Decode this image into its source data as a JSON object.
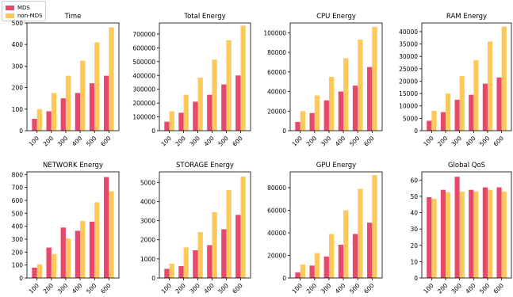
{
  "legend": {
    "series": [
      {
        "name": "MDS",
        "color": "#e8486b"
      },
      {
        "name": "non-MDS",
        "color": "#fdc95a"
      }
    ]
  },
  "chart_data": [
    {
      "type": "bar",
      "title": "Time",
      "categories": [
        "100",
        "200",
        "300",
        "400",
        "500",
        "600"
      ],
      "series": [
        {
          "name": "MDS",
          "values": [
            55,
            90,
            150,
            175,
            220,
            255
          ]
        },
        {
          "name": "non-MDS",
          "values": [
            100,
            175,
            255,
            325,
            410,
            480
          ]
        }
      ],
      "ylim": [
        0,
        500
      ],
      "yticks": [
        0,
        100,
        200,
        300,
        400,
        500
      ],
      "ytick_labels": [
        "0",
        "100",
        "200",
        "300",
        "400",
        "500"
      ]
    },
    {
      "type": "bar",
      "title": "Total Energy",
      "categories": [
        "100",
        "200",
        "300",
        "400",
        "500",
        "600"
      ],
      "series": [
        {
          "name": "MDS",
          "values": [
            65000,
            130000,
            210000,
            260000,
            335000,
            400000
          ]
        },
        {
          "name": "non-MDS",
          "values": [
            140000,
            260000,
            385000,
            515000,
            655000,
            760000
          ]
        }
      ],
      "ylim": [
        0,
        780000
      ],
      "yticks": [
        0,
        100000,
        200000,
        300000,
        400000,
        500000,
        600000,
        700000
      ],
      "ytick_labels": [
        "0",
        "100000",
        "200000",
        "300000",
        "400000",
        "500000",
        "600000",
        "700000"
      ]
    },
    {
      "type": "bar",
      "title": "CPU Energy",
      "categories": [
        "100",
        "200",
        "300",
        "400",
        "500",
        "600"
      ],
      "series": [
        {
          "name": "MDS",
          "values": [
            9000,
            18000,
            31000,
            40000,
            46000,
            65000
          ]
        },
        {
          "name": "non-MDS",
          "values": [
            20000,
            36000,
            55000,
            74000,
            93000,
            106000
          ]
        }
      ],
      "ylim": [
        0,
        110000
      ],
      "yticks": [
        0,
        20000,
        40000,
        60000,
        80000,
        100000
      ],
      "ytick_labels": [
        "0",
        "20000",
        "40000",
        "60000",
        "80000",
        "100000"
      ]
    },
    {
      "type": "bar",
      "title": "RAM Energy",
      "categories": [
        "100",
        "200",
        "300",
        "400",
        "500",
        "600"
      ],
      "series": [
        {
          "name": "MDS",
          "values": [
            4000,
            7500,
            12500,
            14500,
            19000,
            21500
          ]
        },
        {
          "name": "non-MDS",
          "values": [
            8000,
            15000,
            22000,
            28500,
            36000,
            42000
          ]
        }
      ],
      "ylim": [
        0,
        43500
      ],
      "yticks": [
        0,
        5000,
        10000,
        15000,
        20000,
        25000,
        30000,
        35000,
        40000
      ],
      "ytick_labels": [
        "0",
        "5000",
        "10000",
        "15000",
        "20000",
        "25000",
        "30000",
        "35000",
        "40000"
      ]
    },
    {
      "type": "bar",
      "title": "NETWORK Energy",
      "categories": [
        "100",
        "200",
        "300",
        "400",
        "500",
        "600"
      ],
      "series": [
        {
          "name": "MDS",
          "values": [
            80,
            235,
            390,
            365,
            435,
            780
          ]
        },
        {
          "name": "non-MDS",
          "values": [
            105,
            185,
            305,
            440,
            585,
            670
          ]
        }
      ],
      "ylim": [
        0,
        820
      ],
      "yticks": [
        0,
        100,
        200,
        300,
        400,
        500,
        600,
        700,
        800
      ],
      "ytick_labels": [
        "0",
        "100",
        "200",
        "300",
        "400",
        "500",
        "600",
        "700",
        "800"
      ]
    },
    {
      "type": "bar",
      "title": "STORAGE Energy",
      "categories": [
        "100",
        "200",
        "300",
        "400",
        "500",
        "600"
      ],
      "series": [
        {
          "name": "MDS",
          "values": [
            480,
            620,
            1450,
            1720,
            2550,
            3300
          ]
        },
        {
          "name": "non-MDS",
          "values": [
            750,
            1600,
            2400,
            3450,
            4600,
            5300
          ]
        }
      ],
      "ylim": [
        0,
        5550
      ],
      "yticks": [
        0,
        1000,
        2000,
        3000,
        4000,
        5000
      ],
      "ytick_labels": [
        "0",
        "1000",
        "2000",
        "3000",
        "4000",
        "5000"
      ]
    },
    {
      "type": "bar",
      "title": "GPU Energy",
      "categories": [
        "100",
        "200",
        "300",
        "400",
        "500",
        "600"
      ],
      "series": [
        {
          "name": "MDS",
          "values": [
            5000,
            11000,
            19000,
            29500,
            39000,
            49000
          ]
        },
        {
          "name": "non-MDS",
          "values": [
            12000,
            22000,
            39000,
            60000,
            79000,
            91000
          ]
        }
      ],
      "ylim": [
        0,
        94000
      ],
      "yticks": [
        0,
        20000,
        40000,
        60000,
        80000
      ],
      "ytick_labels": [
        "0",
        "20000",
        "40000",
        "60000",
        "80000"
      ]
    },
    {
      "type": "bar",
      "title": "Global QoS",
      "categories": [
        "100",
        "200",
        "300",
        "400",
        "500",
        "600"
      ],
      "series": [
        {
          "name": "MDS",
          "values": [
            49.5,
            54,
            62,
            54,
            55.5,
            55.5
          ]
        },
        {
          "name": "non-MDS",
          "values": [
            48.5,
            52.5,
            53,
            53,
            54,
            53
          ]
        }
      ],
      "ylim": [
        0,
        65
      ],
      "yticks": [
        0,
        10,
        20,
        30,
        40,
        50,
        60
      ],
      "ytick_labels": [
        "0",
        "10",
        "20",
        "30",
        "40",
        "50",
        "60"
      ]
    }
  ]
}
